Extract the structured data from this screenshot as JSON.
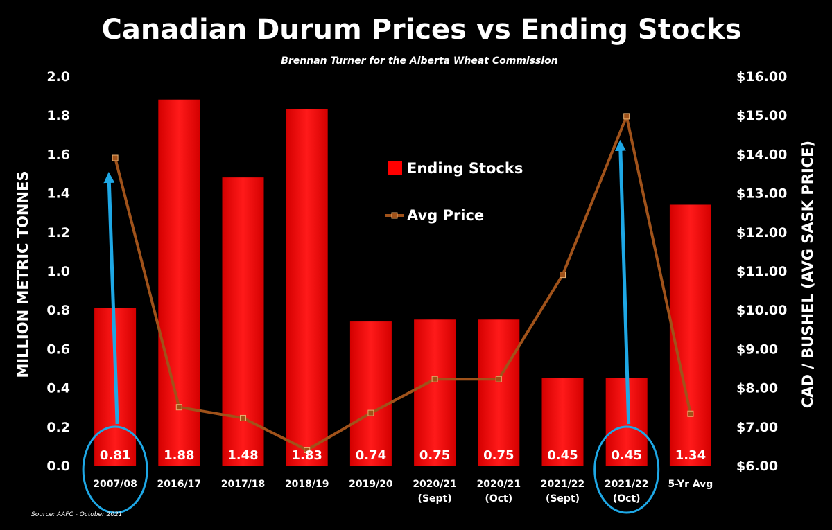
{
  "chart_data": {
    "type": "bar",
    "title": "Canadian Durum Prices vs Ending Stocks",
    "subtitle": "Brennan Turner for the Alberta Wheat Commission",
    "source": "Source: AAFC -  October 2021",
    "ylabel": "MILLION METRIC TONNES",
    "y2label": "CAD / BUSHEL (AVG SASK PRICE)",
    "ylim": [
      0,
      2.0
    ],
    "y2lim": [
      6.0,
      16.0
    ],
    "yticks": [
      "0.0",
      "0.2",
      "0.4",
      "0.6",
      "0.8",
      "1.0",
      "1.2",
      "1.4",
      "1.6",
      "1.8",
      "2.0"
    ],
    "y2ticks": [
      "$6.00",
      "$7.00",
      "$8.00",
      "$9.00",
      "$10.00",
      "$11.00",
      "$12.00",
      "$13.00",
      "$14.00",
      "$15.00",
      "$16.00"
    ],
    "categories": [
      [
        "2007/08"
      ],
      [
        "2016/17"
      ],
      [
        "2017/18"
      ],
      [
        "2018/19"
      ],
      [
        "2019/20"
      ],
      [
        "2020/21",
        "(Sept)"
      ],
      [
        "2020/21",
        "(Oct)"
      ],
      [
        "2021/22",
        "(Sept)"
      ],
      [
        "2021/22",
        "(Oct)"
      ],
      [
        "5-Yr Avg"
      ]
    ],
    "grid": false,
    "legend_position": "center",
    "series": [
      {
        "name": "Ending Stocks",
        "type": "bar",
        "axis": "left",
        "color": "#ff0000",
        "values": [
          0.81,
          1.88,
          1.48,
          1.83,
          0.74,
          0.75,
          0.75,
          0.45,
          0.45,
          1.34
        ],
        "labels": [
          "0.81",
          "1.88",
          "1.48",
          "1.83",
          "0.74",
          "0.75",
          "0.75",
          "0.45",
          "0.45",
          "1.34"
        ]
      },
      {
        "name": "Avg Price",
        "type": "line",
        "axis": "right",
        "color": "#a0521a",
        "values": [
          13.9,
          7.5,
          7.22,
          6.4,
          7.35,
          8.22,
          8.22,
          10.9,
          14.97,
          7.33
        ]
      }
    ],
    "annotations": {
      "arrow_color": "#1ea8e6",
      "highlighted_categories": [
        0,
        8
      ]
    }
  }
}
